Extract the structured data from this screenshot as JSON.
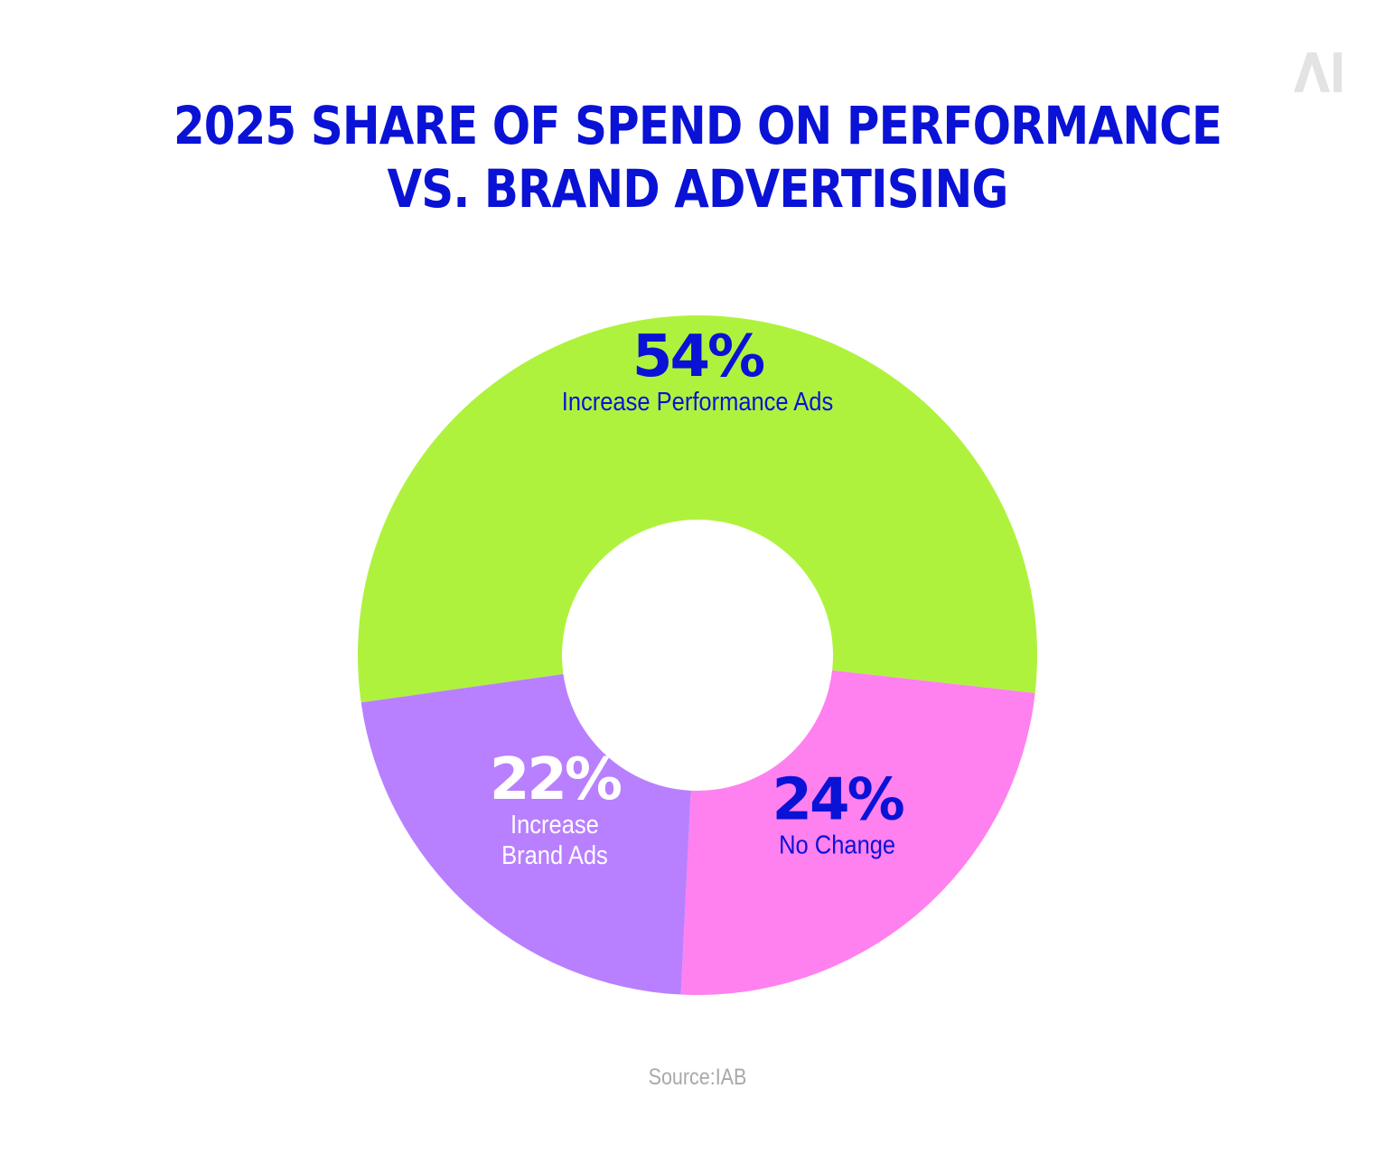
{
  "title": {
    "line1": "2025 SHARE OF SPEND ON PERFORMANCE",
    "line2": "VS. BRAND ADVERTISING"
  },
  "logo_text": "AI",
  "source": "Source:IAB",
  "colors": {
    "title": "#0a12d6",
    "source": "#a9a9a9",
    "logo": "#e3e3e3",
    "background": "#ffffff"
  },
  "chart_data": {
    "type": "pie",
    "variant": "donut",
    "title": "2025 SHARE OF SPEND ON PERFORMANCE VS. BRAND ADVERTISING",
    "legend": "none",
    "slices": [
      {
        "label_lines": [
          "Increase Performance Ads"
        ],
        "value": 54,
        "display": "54%",
        "color": "#aff23e",
        "text_color": "#0a12d6"
      },
      {
        "label_lines": [
          "No Change"
        ],
        "value": 24,
        "display": "24%",
        "color": "#ff80ef",
        "text_color": "#0a12d6"
      },
      {
        "label_lines": [
          "Increase",
          "Brand Ads"
        ],
        "value": 22,
        "display": "22%",
        "color": "#b880ff",
        "text_color": "#ffffff"
      }
    ]
  }
}
